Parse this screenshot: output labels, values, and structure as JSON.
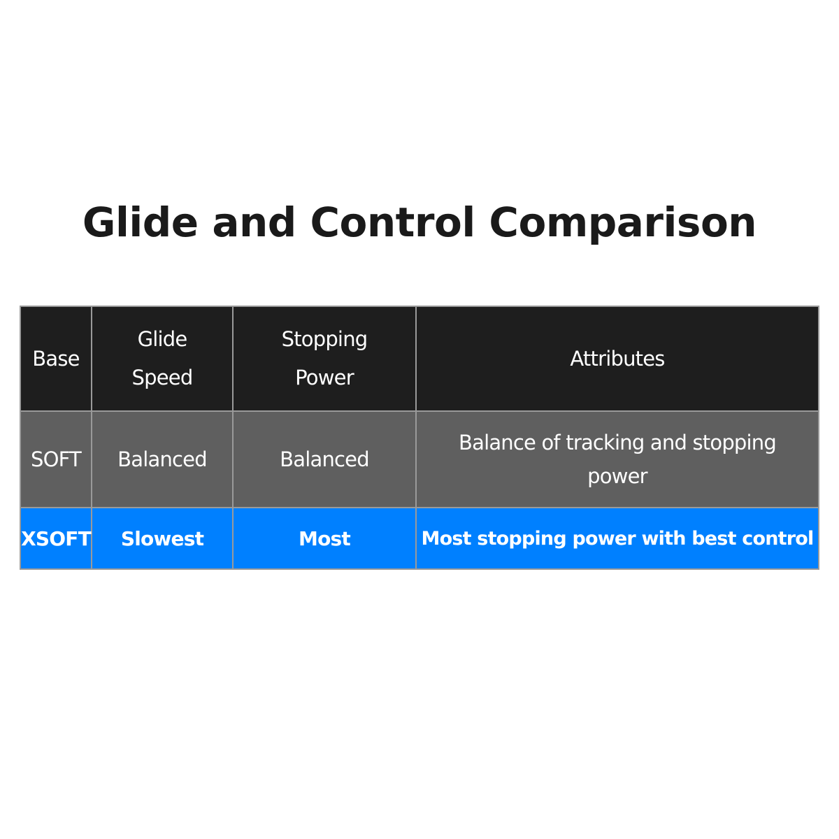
{
  "title": "Glide and Control Comparison",
  "table": {
    "headers": [
      "Base",
      "Glide Speed",
      "Stopping Power",
      "Attributes"
    ],
    "rows": [
      [
        "SOFT",
        "Balanced",
        "Balanced",
        "Balance of tracking and stopping power"
      ],
      [
        "XSOFT",
        "Slowest",
        "Most",
        "Most stopping power with best control"
      ]
    ]
  },
  "colors": {
    "header_bg": "#1e1e1e",
    "soft_row_bg": "#5f5f5f",
    "xsoft_row_bg": "#0080ff",
    "border": "#9a9a9a"
  }
}
